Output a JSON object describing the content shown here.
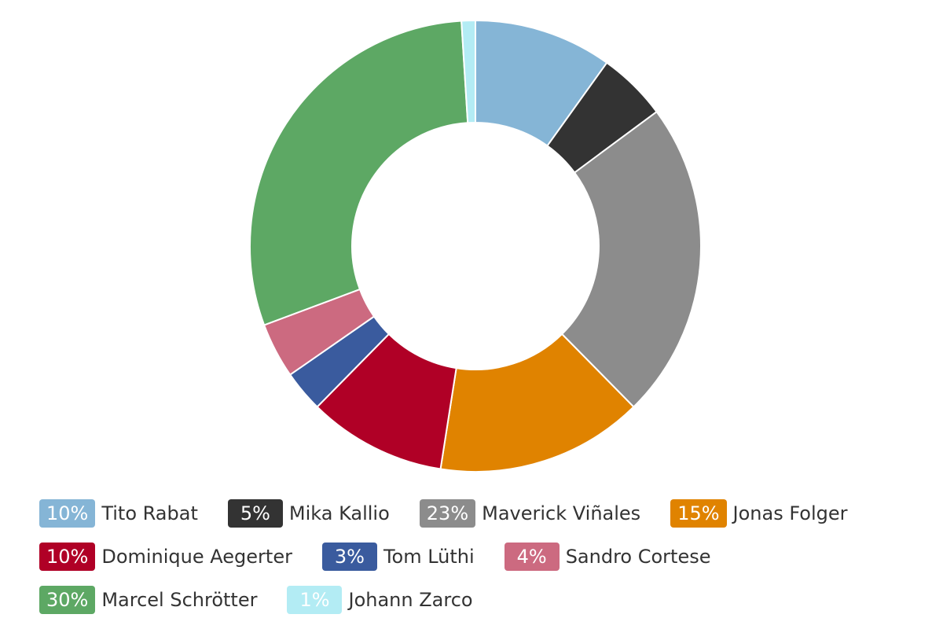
{
  "chart_data": {
    "type": "pie",
    "categories": [
      "Tito Rabat",
      "Mika Kallio",
      "Maverick Viñales",
      "Jonas Folger",
      "Dominique Aegerter",
      "Tom Lüthi",
      "Sandro Cortese",
      "Marcel Schrötter",
      "Johann Zarco"
    ],
    "values": [
      10,
      5,
      23,
      15,
      10,
      3,
      4,
      30,
      1
    ],
    "value_labels": [
      "10%",
      "5%",
      "23%",
      "15%",
      "10%",
      "3%",
      "4%",
      "30%",
      "1%"
    ],
    "colors": [
      "#85b5d6",
      "#333333",
      "#8c8c8c",
      "#e08300",
      "#b00026",
      "#3a5b9e",
      "#cc6a80",
      "#5da864",
      "#b3ecf4"
    ]
  }
}
